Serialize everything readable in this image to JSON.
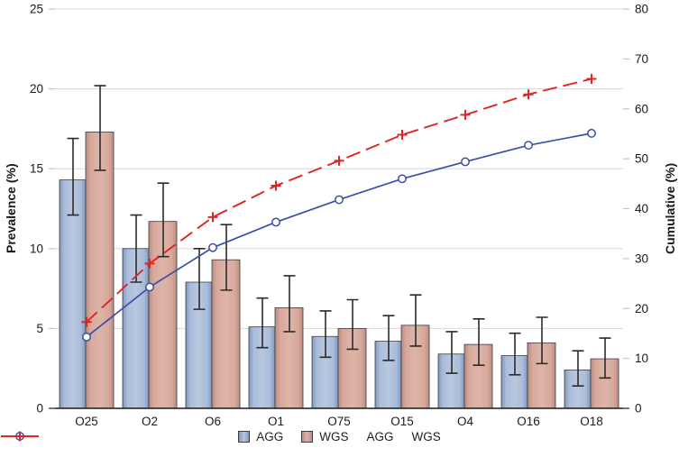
{
  "figure": {
    "background": "#ffffff",
    "text_color": "#1a1a1a",
    "grid_color": "#dcdcdc",
    "axis_line_color": "#1a1a1a"
  },
  "chart_data": {
    "type": "bar",
    "subtype": "grouped bars with error bars + cumulative percentage lines (Pareto-style combo)",
    "categories": [
      "O25",
      "O2",
      "O6",
      "O1",
      "O75",
      "O15",
      "O4",
      "O16",
      "O18"
    ],
    "bar_series": [
      {
        "name": "AGG",
        "axis": "left",
        "fill": "#a9bcd9",
        "fill_light": "#b9c7e0",
        "fill_dark": "#8198bf",
        "outline": "#3d3d3d",
        "values": [
          14.3,
          10.0,
          7.9,
          5.1,
          4.5,
          4.2,
          3.4,
          3.3,
          2.4
        ],
        "error_low": [
          12.1,
          7.9,
          6.2,
          3.8,
          3.2,
          3.0,
          2.2,
          2.1,
          1.4
        ],
        "error_high": [
          16.9,
          12.1,
          10.0,
          6.9,
          6.1,
          5.8,
          4.8,
          4.7,
          3.6
        ]
      },
      {
        "name": "WGS",
        "axis": "left",
        "fill": "#d8a99c",
        "fill_light": "#deb4a8",
        "fill_dark": "#bb8c81",
        "outline": "#3d3d3d",
        "values": [
          17.3,
          11.7,
          9.3,
          6.3,
          5.0,
          5.2,
          4.0,
          4.1,
          3.1
        ],
        "error_low": [
          14.9,
          9.5,
          7.4,
          4.8,
          3.7,
          3.9,
          2.7,
          2.8,
          1.9
        ],
        "error_high": [
          20.2,
          14.1,
          11.5,
          8.3,
          6.8,
          7.1,
          5.6,
          5.7,
          4.4
        ]
      }
    ],
    "line_series": [
      {
        "name": "AGG",
        "axis": "right",
        "color": "#3a50a8",
        "marker": "circle",
        "line_style": "solid",
        "values": [
          14.3,
          24.3,
          32.2,
          37.3,
          41.8,
          46.0,
          49.4,
          52.7,
          55.1
        ]
      },
      {
        "name": "WGS",
        "axis": "right",
        "color": "#e02424",
        "marker": "plus",
        "line_style": "dashed",
        "values": [
          17.3,
          29.0,
          38.3,
          44.6,
          49.6,
          54.8,
          58.8,
          62.9,
          66.0
        ]
      }
    ],
    "left_axis": {
      "label": "Prevalence (%)",
      "min": 0,
      "max": 25,
      "tick_step": 5,
      "ticks": [
        0,
        5,
        10,
        15,
        20,
        25
      ]
    },
    "right_axis": {
      "label": "Cumulative (%)",
      "min": 0,
      "max": 80,
      "tick_step": 10,
      "ticks": [
        0,
        10,
        20,
        30,
        40,
        50,
        60,
        70,
        80
      ]
    },
    "grid": "horizontal gridlines at left-axis ticks, light gray",
    "legend_position": "bottom-center",
    "error_bar_color": "#2b2b2b"
  },
  "legend": {
    "items": [
      {
        "label": "AGG",
        "swatch": "bar-blue"
      },
      {
        "label": "WGS",
        "swatch": "bar-pink"
      },
      {
        "label": "AGG",
        "swatch": "line-blue-circle"
      },
      {
        "label": "WGS",
        "swatch": "line-red-plus"
      }
    ]
  }
}
